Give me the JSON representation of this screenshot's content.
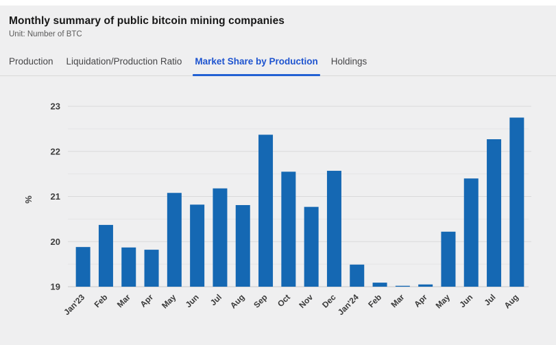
{
  "page": {
    "title": "Monthly summary of public bitcoin mining companies",
    "subtitle": "Unit: Number of BTC"
  },
  "tabs": [
    {
      "label": "Production",
      "active": false
    },
    {
      "label": "Liquidation/Production Ratio",
      "active": false
    },
    {
      "label": "Market Share by Production",
      "active": true
    },
    {
      "label": "Holdings",
      "active": false
    }
  ],
  "chart_data": {
    "type": "bar",
    "title": "Market Share by Production",
    "xlabel": "",
    "ylabel": "%",
    "ylim": [
      19,
      23
    ],
    "y_ticks": [
      23,
      22,
      21,
      20,
      19
    ],
    "minor_grid_step": 0.5,
    "grid": true,
    "legend": false,
    "categories": [
      "Jan'23",
      "Feb",
      "Mar",
      "Apr",
      "May",
      "Jun",
      "Jul",
      "Aug",
      "Sep",
      "Oct",
      "Nov",
      "Dec",
      "Jan'24",
      "Feb",
      "Mar",
      "Apr",
      "May",
      "Jun",
      "Jul",
      "Aug"
    ],
    "values": [
      19.88,
      20.37,
      19.87,
      19.82,
      21.08,
      20.82,
      21.18,
      20.81,
      22.37,
      21.55,
      20.77,
      21.57,
      19.49,
      19.09,
      19.02,
      19.05,
      20.22,
      21.4,
      22.27,
      22.75
    ]
  },
  "colors": {
    "background": "#efeff0",
    "top_strip": "#ffffff",
    "bar_blue": "#1568b3",
    "tab_active_blue": "#1d53cf",
    "tab_underline_blue": "#2160d3",
    "grid_major": "#d9d9da",
    "grid_minor": "#e4e4e5",
    "axis_line": "#cfcfcf",
    "tick_label": "#3d3d3d"
  }
}
